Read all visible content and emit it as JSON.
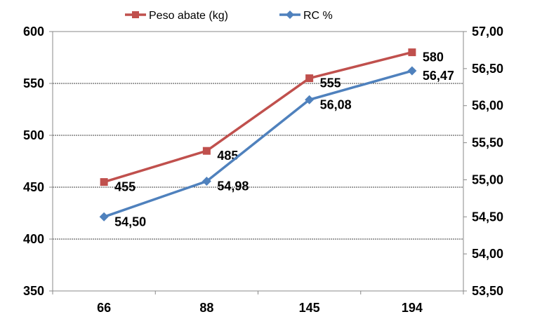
{
  "chart_data": {
    "type": "line",
    "categories": [
      "66",
      "88",
      "145",
      "194"
    ],
    "series": [
      {
        "name": "Peso abate (kg)",
        "axis": "left",
        "values": [
          455,
          485,
          555,
          580
        ],
        "labels": [
          "455",
          "485",
          "555",
          "580"
        ],
        "color": "#C0504D",
        "marker": "square"
      },
      {
        "name": "RC %",
        "axis": "right",
        "values": [
          54.5,
          54.98,
          56.08,
          56.47
        ],
        "labels": [
          "54,50",
          "54,98",
          "56,08",
          "56,47"
        ],
        "color": "#4F81BD",
        "marker": "diamond"
      }
    ],
    "y_left": {
      "min": 350,
      "max": 600,
      "ticks": [
        350,
        400,
        450,
        500,
        550,
        600
      ],
      "tick_labels": [
        "350",
        "400",
        "450",
        "500",
        "550",
        "600"
      ]
    },
    "y_right": {
      "min": 53.5,
      "max": 57.0,
      "ticks": [
        53.5,
        54.0,
        54.5,
        55.0,
        55.5,
        56.0,
        56.5,
        57.0
      ],
      "tick_labels": [
        "53,50",
        "54,00",
        "54,50",
        "55,00",
        "55,50",
        "56,00",
        "56,50",
        "57,00"
      ]
    },
    "grid": "horizontal dashed",
    "legend_position": "top"
  }
}
